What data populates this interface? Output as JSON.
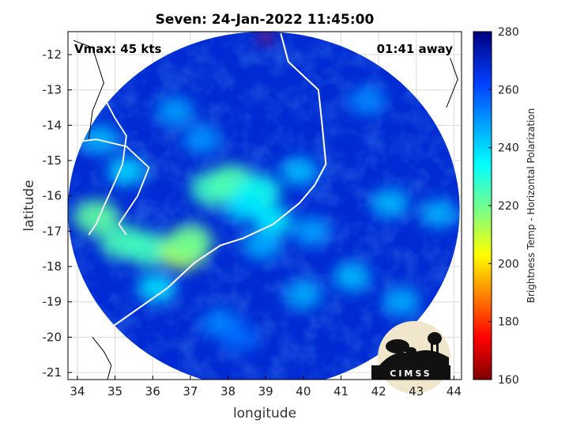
{
  "chart_data": {
    "type": "heatmap",
    "title": "Seven: 24-Jan-2022 11:45:00",
    "xlabel": "longitude",
    "ylabel": "latitude",
    "xlim": [
      33.75,
      44.2
    ],
    "ylim": [
      -21.2,
      -11.35
    ],
    "x_ticks": [
      34,
      35,
      36,
      37,
      38,
      39,
      40,
      41,
      42,
      43,
      44
    ],
    "y_ticks": [
      -12,
      -13,
      -14,
      -15,
      -16,
      -17,
      -18,
      -19,
      -20,
      -21
    ],
    "grid": true,
    "annotations": {
      "vmax": "Vmax: 45 kts",
      "time_away": "01:41 away"
    },
    "colorbar": {
      "label": "Brightness Temp - Horizontal Polarization",
      "min": 160,
      "max": 280,
      "ticks": [
        160,
        180,
        200,
        220,
        240,
        260,
        280
      ],
      "colormap": "jet"
    },
    "swath": {
      "center": [
        38.95,
        -16.4
      ],
      "radius_deg_lon": 5.2,
      "radius_deg_lat": 5.05,
      "background_value": 268
    },
    "features": [
      {
        "lon": 35.3,
        "lat": -15.3,
        "value": 240
      },
      {
        "lon": 34.5,
        "lat": -16.6,
        "value": 222
      },
      {
        "lon": 35.2,
        "lat": -17.3,
        "value": 225
      },
      {
        "lon": 35.9,
        "lat": -17.5,
        "value": 226
      },
      {
        "lon": 36.8,
        "lat": -17.6,
        "value": 212
      },
      {
        "lon": 37.0,
        "lat": -17.3,
        "value": 220
      },
      {
        "lon": 37.6,
        "lat": -15.8,
        "value": 226
      },
      {
        "lon": 38.1,
        "lat": -15.6,
        "value": 224
      },
      {
        "lon": 38.8,
        "lat": -15.9,
        "value": 232
      },
      {
        "lon": 39.2,
        "lat": -16.7,
        "value": 236
      },
      {
        "lon": 38.4,
        "lat": -16.3,
        "value": 238
      },
      {
        "lon": 39.9,
        "lat": -15.3,
        "value": 244
      },
      {
        "lon": 38.9,
        "lat": -17.4,
        "value": 246
      },
      {
        "lon": 40.2,
        "lat": -17.0,
        "value": 248
      },
      {
        "lon": 36.6,
        "lat": -13.6,
        "value": 248
      },
      {
        "lon": 37.3,
        "lat": -14.4,
        "value": 250
      },
      {
        "lon": 36.1,
        "lat": -18.6,
        "value": 238
      },
      {
        "lon": 41.3,
        "lat": -18.3,
        "value": 244
      },
      {
        "lon": 40.0,
        "lat": -18.8,
        "value": 246
      },
      {
        "lon": 42.6,
        "lat": -19.0,
        "value": 246
      },
      {
        "lon": 42.3,
        "lat": -16.2,
        "value": 244
      },
      {
        "lon": 43.6,
        "lat": -16.5,
        "value": 246
      },
      {
        "lon": 41.7,
        "lat": -13.3,
        "value": 252
      },
      {
        "lon": 34.6,
        "lat": -14.4,
        "value": 244
      },
      {
        "lon": 37.8,
        "lat": -19.6,
        "value": 252
      },
      {
        "lon": 38.3,
        "lat": -20.0,
        "value": 256
      },
      {
        "lon": 39.0,
        "lat": -11.5,
        "value": 175
      }
    ]
  },
  "colors": {
    "coastline": "#ffffff",
    "land_border": "#000000",
    "grid": "#d9d9d9",
    "axis": "#000000"
  },
  "logo": {
    "text": "CIMSS",
    "icon": "cimss-logo-icon"
  }
}
